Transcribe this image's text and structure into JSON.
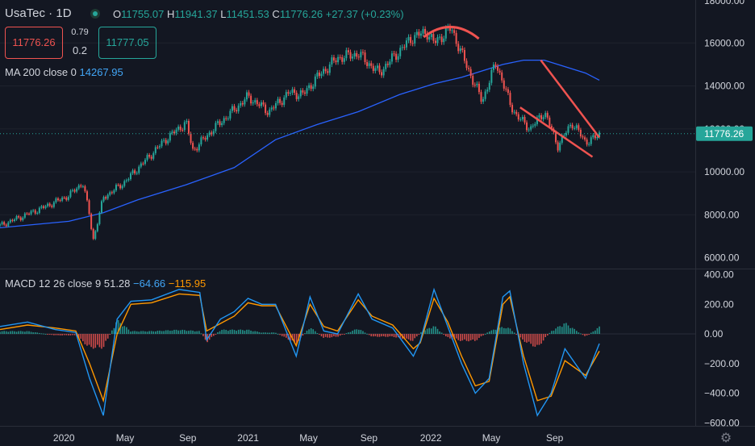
{
  "header": {
    "symbol": "UsaTec · 1D",
    "open_k": "O",
    "open": "11755.07",
    "high_k": "H",
    "high": "11941.37",
    "low_k": "L",
    "low": "11451.53",
    "close_k": "C",
    "close": "11776.26",
    "change": "+27.37 (+0.23%)",
    "sell_price": "11776.26",
    "buy_price": "11777.05",
    "spread_top": "0.79",
    "spread_bottom": "0.2"
  },
  "ma_legend": {
    "label": "MA 200 close 0",
    "value": "14267.95"
  },
  "macd_legend": {
    "label": "MACD 12 26 close 9",
    "v1": "51.28",
    "v2": "−64.66",
    "v3": "−115.95"
  },
  "chart_data": [
    {
      "type": "line",
      "title": "UsaTec · 1D",
      "x_ticks": [
        "2020",
        "May",
        "Sep",
        "2021",
        "May",
        "Sep",
        "2022",
        "May",
        "Sep"
      ],
      "y_ticks": [
        "6000.00",
        "8000.00",
        "10000.00",
        "12000.00",
        "14000.00",
        "16000.00",
        "18000.00"
      ],
      "ylim": [
        5500,
        18000
      ],
      "last_price_label": "11776.26",
      "series": [
        {
          "role": "price",
          "x": [
            0,
            0.06,
            0.1,
            0.12,
            0.13,
            0.135,
            0.15,
            0.18,
            0.21,
            0.24,
            0.27,
            0.28,
            0.31,
            0.34,
            0.36,
            0.39,
            0.42,
            0.44,
            0.46,
            0.49,
            0.52,
            0.55,
            0.57,
            0.6,
            0.62,
            0.63,
            0.655,
            0.67,
            0.69,
            0.7,
            0.71,
            0.72,
            0.74,
            0.75,
            0.77,
            0.79,
            0.81,
            0.83,
            0.85,
            0.86,
            0.87
          ],
          "values": [
            7500,
            8300,
            8900,
            9500,
            8000,
            6800,
            8800,
            9500,
            10500,
            11500,
            12300,
            11000,
            12000,
            12900,
            13500,
            12800,
            13700,
            13600,
            14400,
            15300,
            15500,
            14600,
            15300,
            16300,
            16500,
            16000,
            16700,
            15500,
            14000,
            13300,
            14200,
            15100,
            13200,
            12600,
            12000,
            12800,
            11200,
            12300,
            11400,
            11500,
            11776
          ]
        },
        {
          "name": "MA 200 close 0",
          "x": [
            0,
            0.1,
            0.15,
            0.2,
            0.27,
            0.34,
            0.4,
            0.46,
            0.52,
            0.58,
            0.63,
            0.67,
            0.7,
            0.73,
            0.76,
            0.79,
            0.82,
            0.85,
            0.87
          ],
          "values": [
            7400,
            7700,
            8100,
            8700,
            9400,
            10200,
            11500,
            12200,
            12800,
            13600,
            14100,
            14400,
            14700,
            15000,
            15200,
            15200,
            14900,
            14600,
            14268
          ]
        }
      ],
      "annotations": [
        {
          "type": "arc",
          "label": "top"
        },
        {
          "type": "line",
          "label": "upper wedge",
          "x": [
            0.785,
            0.87
          ],
          "values": [
            15200,
            11600
          ]
        },
        {
          "type": "line",
          "label": "lower wedge",
          "x": [
            0.755,
            0.86
          ],
          "values": [
            13000,
            10700
          ]
        }
      ]
    },
    {
      "type": "bar",
      "title": "MACD 12 26 close 9",
      "y_ticks": [
        "400.00",
        "200.00",
        "0.00",
        "−200.00",
        "−400.00",
        "−600.00"
      ],
      "ylim": [
        -620,
        430
      ],
      "series": [
        {
          "name": "MACD",
          "x": [
            0,
            0.04,
            0.08,
            0.11,
            0.13,
            0.15,
            0.17,
            0.19,
            0.22,
            0.26,
            0.29,
            0.3,
            0.32,
            0.34,
            0.36,
            0.38,
            0.4,
            0.43,
            0.45,
            0.47,
            0.49,
            0.52,
            0.54,
            0.57,
            0.6,
            0.61,
            0.63,
            0.65,
            0.67,
            0.69,
            0.71,
            0.73,
            0.74,
            0.76,
            0.78,
            0.8,
            0.82,
            0.85,
            0.87
          ],
          "values": [
            50,
            80,
            30,
            10,
            -300,
            -550,
            100,
            220,
            230,
            300,
            280,
            -40,
            100,
            150,
            240,
            200,
            200,
            -150,
            250,
            20,
            0,
            270,
            100,
            40,
            -150,
            -50,
            300,
            50,
            -200,
            -400,
            -300,
            250,
            290,
            -200,
            -550,
            -400,
            -100,
            -300,
            -65
          ]
        },
        {
          "name": "Signal",
          "x": [
            0,
            0.04,
            0.08,
            0.11,
            0.13,
            0.15,
            0.17,
            0.19,
            0.22,
            0.26,
            0.29,
            0.3,
            0.32,
            0.34,
            0.36,
            0.38,
            0.4,
            0.43,
            0.45,
            0.47,
            0.49,
            0.52,
            0.54,
            0.57,
            0.6,
            0.61,
            0.63,
            0.65,
            0.67,
            0.69,
            0.71,
            0.73,
            0.74,
            0.76,
            0.78,
            0.8,
            0.82,
            0.85,
            0.87
          ],
          "values": [
            30,
            60,
            40,
            20,
            -200,
            -450,
            0,
            200,
            210,
            270,
            260,
            20,
            70,
            120,
            210,
            190,
            190,
            -80,
            200,
            50,
            20,
            230,
            120,
            60,
            -100,
            -60,
            240,
            80,
            -150,
            -350,
            -320,
            200,
            250,
            -150,
            -450,
            -420,
            -180,
            -280,
            -116
          ]
        }
      ],
      "histogram": [
        20,
        20,
        -10,
        -10,
        -100,
        -100,
        100,
        20,
        20,
        30,
        20,
        -60,
        30,
        30,
        30,
        10,
        10,
        -70,
        50,
        -30,
        -20,
        40,
        -20,
        -20,
        -50,
        10,
        60,
        -30,
        -50,
        -50,
        20,
        50,
        40,
        -50,
        -100,
        20,
        80,
        -20,
        51
      ]
    }
  ],
  "colors": {
    "background": "#131722",
    "grid": "#1e222d",
    "up": "#26a69a",
    "down": "#ef5350",
    "ma": "#2962ff",
    "macd": "#2196f3",
    "signal": "#ff9800",
    "wedge": "#ef5350",
    "axis_text": "#d1d4dc"
  },
  "icons": {
    "settings": "gear-icon",
    "live": "live-dot-icon"
  }
}
